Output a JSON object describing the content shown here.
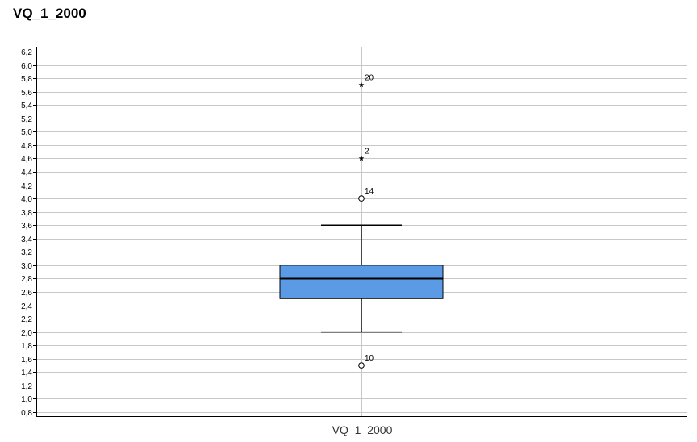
{
  "chart_data": {
    "type": "boxplot",
    "title": "VQ_1_2000",
    "xlabel": "",
    "ylabel": "",
    "categories": [
      "VQ_1_2000"
    ],
    "ylim": [
      0.7,
      6.3
    ],
    "y_ticks": [
      "0,8",
      "1,0",
      "1,2",
      "1,4",
      "1,6",
      "1,8",
      "2,0",
      "2,2",
      "2,4",
      "2,6",
      "2,8",
      "3,0",
      "3,2",
      "3,4",
      "3,6",
      "3,8",
      "4,0",
      "4,2",
      "4,4",
      "4,6",
      "4,8",
      "5,0",
      "5,2",
      "5,4",
      "5,6",
      "5,8",
      "6,0",
      "6,2"
    ],
    "y_tick_values": [
      0.8,
      1.0,
      1.2,
      1.4,
      1.6,
      1.8,
      2.0,
      2.2,
      2.4,
      2.6,
      2.8,
      3.0,
      3.2,
      3.4,
      3.6,
      3.8,
      4.0,
      4.2,
      4.4,
      4.6,
      4.8,
      5.0,
      5.2,
      5.4,
      5.6,
      5.8,
      6.0,
      6.2
    ],
    "grid": true,
    "box": {
      "whisker_low": 2.0,
      "q1": 2.5,
      "median": 2.8,
      "q3": 3.0,
      "whisker_high": 3.6,
      "color": "#5b9be6"
    },
    "outliers": [
      {
        "label": "20",
        "value": 5.7,
        "marker": "star"
      },
      {
        "label": "2",
        "value": 4.6,
        "marker": "star"
      },
      {
        "label": "14",
        "value": 4.0,
        "marker": "circle"
      },
      {
        "label": "10",
        "value": 1.5,
        "marker": "circle"
      }
    ]
  }
}
